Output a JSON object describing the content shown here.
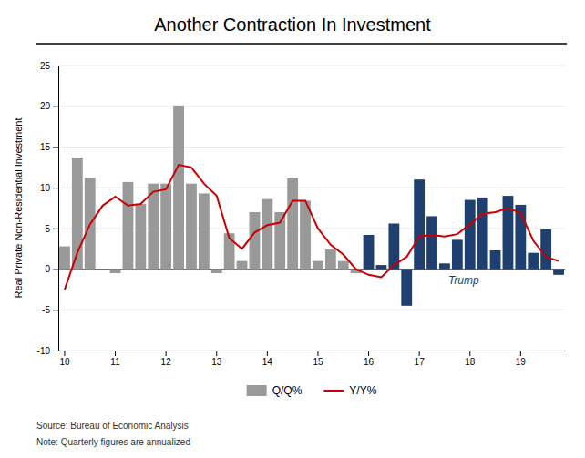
{
  "chart_data": {
    "type": "bar",
    "title": "Another Contraction In Investment",
    "ylabel": "Real Private Non-Residential Investment",
    "source": "Source: Bureau of Economic Analysis",
    "note": "Note: Quarterly figures are annualized",
    "annotations": [
      {
        "text": "Trump",
        "color": "#1f3f6e"
      }
    ],
    "categories": [
      "10",
      null,
      null,
      null,
      "11",
      null,
      null,
      null,
      "12",
      null,
      null,
      null,
      "13",
      null,
      null,
      null,
      "14",
      null,
      null,
      null,
      "15",
      null,
      null,
      null,
      "16",
      null,
      null,
      null,
      "17",
      null,
      null,
      null,
      "18",
      null,
      null,
      null,
      "19",
      null,
      null,
      null
    ],
    "series": [
      {
        "name": "Q/Q%",
        "type": "bar",
        "color": "#999999",
        "colors": [
          "#999999",
          "#999999",
          "#999999",
          "#999999",
          "#999999",
          "#999999",
          "#999999",
          "#999999",
          "#999999",
          "#999999",
          "#999999",
          "#999999",
          "#999999",
          "#999999",
          "#999999",
          "#999999",
          "#999999",
          "#999999",
          "#999999",
          "#999999",
          "#999999",
          "#999999",
          "#999999",
          "#999999",
          "#1f3f6e",
          "#1f3f6e",
          "#1f3f6e",
          "#1f3f6e",
          "#1f3f6e",
          "#1f3f6e",
          "#1f3f6e",
          "#1f3f6e",
          "#1f3f6e",
          "#1f3f6e",
          "#1f3f6e",
          "#1f3f6e",
          "#1f3f6e",
          "#1f3f6e",
          "#1f3f6e",
          "#1f3f6e"
        ],
        "values": [
          2.8,
          13.7,
          11.2,
          0.0,
          -0.5,
          10.7,
          8.0,
          10.5,
          10.5,
          20.1,
          10.5,
          9.3,
          -0.5,
          4.4,
          1.0,
          7.0,
          8.6,
          7.0,
          11.2,
          8.4,
          1.0,
          2.4,
          1.0,
          -0.5,
          4.2,
          0.5,
          5.6,
          -4.5,
          11.0,
          6.5,
          0.7,
          3.6,
          8.5,
          8.8,
          2.3,
          9.0,
          7.9,
          2.0,
          4.9,
          -0.7
        ]
      },
      {
        "name": "Y/Y%",
        "type": "line",
        "color": "#cc0000",
        "values": [
          -2.5,
          2.0,
          5.5,
          7.8,
          8.9,
          7.8,
          8.0,
          9.5,
          9.8,
          12.8,
          12.5,
          10.5,
          9.0,
          3.8,
          2.5,
          4.5,
          5.4,
          5.7,
          8.4,
          8.4,
          5.0,
          3.0,
          1.8,
          0.0,
          -0.7,
          -1.0,
          0.5,
          1.5,
          4.0,
          4.2,
          4.0,
          4.3,
          5.5,
          6.8,
          7.0,
          7.5,
          6.9,
          3.5,
          1.5,
          1.0
        ]
      }
    ],
    "ylim": [
      -10,
      25
    ],
    "yticks": [
      -10,
      -5,
      0,
      5,
      10,
      15,
      20,
      25
    ],
    "grid": true,
    "legend": "bottom"
  }
}
